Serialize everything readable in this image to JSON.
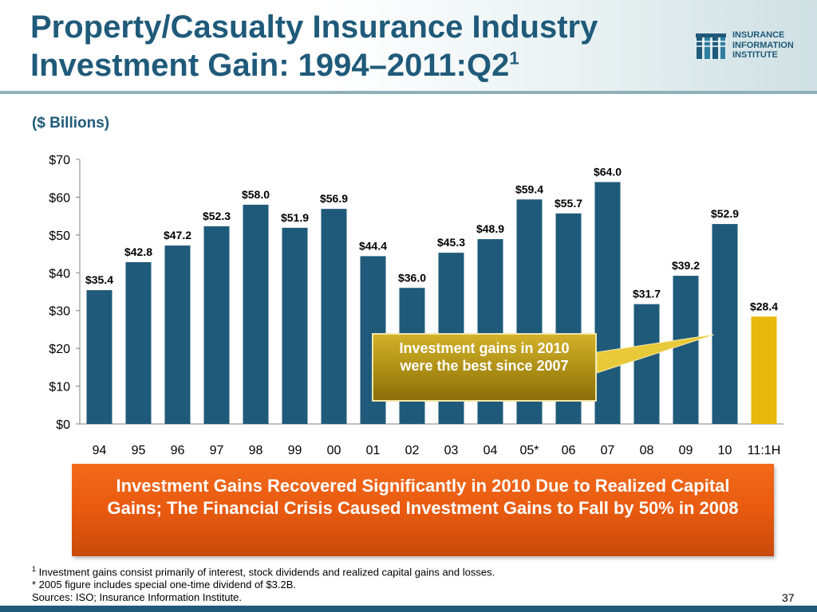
{
  "header": {
    "title_line1": "Property/Casualty Insurance Industry",
    "title_line2": "Investment Gain: 1994–2011:Q2",
    "title_sup": "1"
  },
  "logo": {
    "line1": "INSURANCE",
    "line2": "INFORMATION",
    "line3": "INSTITUTE"
  },
  "units": "($ Billions)",
  "colors": {
    "bar": "#1f5a7a",
    "highlight_bar": "#e8b90c",
    "title": "#1f5a7a",
    "banner": "#e85a10"
  },
  "chart_data": {
    "type": "bar",
    "title": "",
    "xlabel": "",
    "ylabel": "",
    "categories": [
      "94",
      "95",
      "96",
      "97",
      "98",
      "99",
      "00",
      "01",
      "02",
      "03",
      "04",
      "05*",
      "06",
      "07",
      "08",
      "09",
      "10",
      "11:1H"
    ],
    "values": [
      35.4,
      42.8,
      47.2,
      52.3,
      58.0,
      51.9,
      56.9,
      44.4,
      36.0,
      45.3,
      48.9,
      59.4,
      55.7,
      64.0,
      31.7,
      39.2,
      52.9,
      28.4
    ],
    "data_labels": [
      "$35.4",
      "$42.8",
      "$47.2",
      "$52.3",
      "$58.0",
      "$51.9",
      "$56.9",
      "$44.4",
      "$36.0",
      "$45.3",
      "$48.9",
      "$59.4",
      "$55.7",
      "$64.0",
      "$31.7",
      "$39.2",
      "$52.9",
      "$28.4"
    ],
    "highlight_index": 17,
    "ylim": [
      0,
      70
    ],
    "yticks": [
      "$0",
      "$10",
      "$20",
      "$30",
      "$40",
      "$50",
      "$60",
      "$70"
    ],
    "grid": false,
    "legend": "none"
  },
  "callout": "Investment gains in 2010 were the best since 2007",
  "banner": "Investment Gains Recovered Significantly in 2010 Due to Realized Capital Gains; The Financial Crisis Caused Investment Gains to Fall by 50% in 2008",
  "footnotes": {
    "note1_marker": "1",
    "note1": "Investment gains consist primarily of interest, stock dividends and realized capital gains and losses.",
    "note2": "* 2005 figure includes special one-time dividend of $3.2B.",
    "sources": "Sources: ISO; Insurance Information Institute."
  },
  "page_number": "37"
}
